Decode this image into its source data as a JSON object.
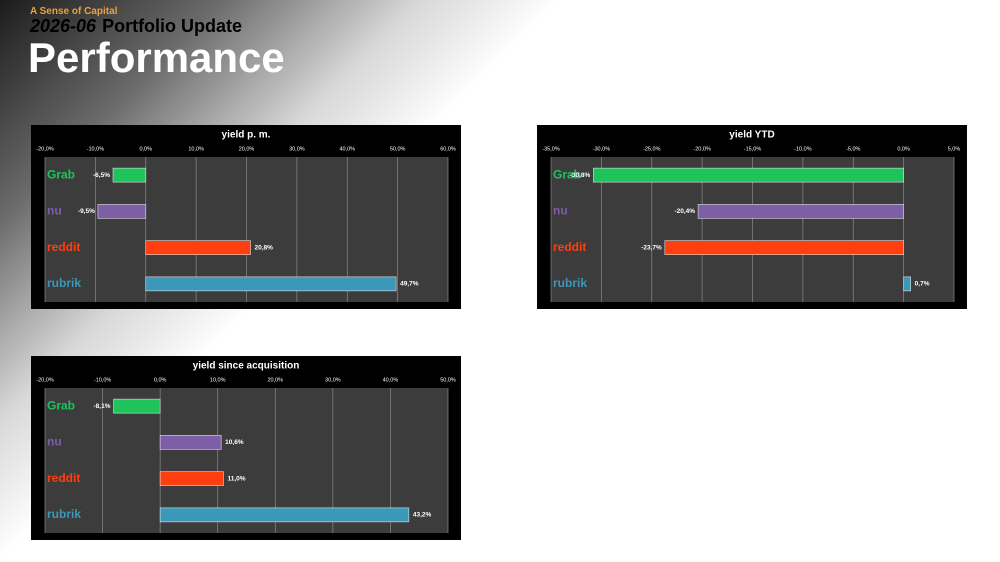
{
  "header": {
    "brand": "A Sense of Capital",
    "date": "2026-06",
    "subtitle": "Portfolio Update",
    "title": "Performance"
  },
  "chart_data": [
    {
      "type": "bar",
      "orientation": "horizontal",
      "title": "yield p. m.",
      "categories": [
        "Grab",
        "nu",
        "reddit",
        "rubrik"
      ],
      "values": [
        -6.5,
        -9.5,
        20.8,
        49.7
      ],
      "value_labels": [
        "-6,5%",
        "-9,5%",
        "20,8%",
        "49,7%"
      ],
      "colors": [
        "#1fc35c",
        "#7d5fa8",
        "#ff3f0f",
        "#3b98b8"
      ],
      "xlim": [
        -20,
        60
      ],
      "xticks": [
        {
          "value": -20,
          "label": "-20,0%"
        },
        {
          "value": -10,
          "label": "-10,0%"
        },
        {
          "value": 0,
          "label": "0,0%"
        },
        {
          "value": 10,
          "label": "10,0%"
        },
        {
          "value": 20,
          "label": "20,0%"
        },
        {
          "value": 30,
          "label": "30,0%"
        },
        {
          "value": 40,
          "label": "40,0%"
        },
        {
          "value": 50,
          "label": "50,0%"
        },
        {
          "value": 60,
          "label": "60,0%"
        }
      ],
      "grid": true
    },
    {
      "type": "bar",
      "orientation": "horizontal",
      "title": "yield YTD",
      "categories": [
        "Grab",
        "nu",
        "reddit",
        "rubrik"
      ],
      "values": [
        -30.8,
        -20.4,
        -23.7,
        0.7
      ],
      "value_labels": [
        "-30,8%",
        "-20,4%",
        "-23,7%",
        "0,7%"
      ],
      "colors": [
        "#1fc35c",
        "#7d5fa8",
        "#ff3f0f",
        "#3b98b8"
      ],
      "xlim": [
        -35,
        5
      ],
      "xticks": [
        {
          "value": -35,
          "label": "-35,0%"
        },
        {
          "value": -30,
          "label": "-30,0%"
        },
        {
          "value": -25,
          "label": "-25,0%"
        },
        {
          "value": -20,
          "label": "-20,0%"
        },
        {
          "value": -15,
          "label": "-15,0%"
        },
        {
          "value": -10,
          "label": "-10,0%"
        },
        {
          "value": -5,
          "label": "-5,0%"
        },
        {
          "value": 0,
          "label": "0,0%"
        },
        {
          "value": 5,
          "label": "5,0%"
        }
      ],
      "grid": true
    },
    {
      "type": "bar",
      "orientation": "horizontal",
      "title": "yield since acquisition",
      "categories": [
        "Grab",
        "nu",
        "reddit",
        "rubrik"
      ],
      "values": [
        -8.1,
        10.6,
        11.0,
        43.2
      ],
      "value_labels": [
        "-8,1%",
        "10,6%",
        "11,0%",
        "43,2%"
      ],
      "colors": [
        "#1fc35c",
        "#7d5fa8",
        "#ff3f0f",
        "#3b98b8"
      ],
      "xlim": [
        -20,
        50
      ],
      "xticks": [
        {
          "value": -20,
          "label": "-20,0%"
        },
        {
          "value": -10,
          "label": "-10,0%"
        },
        {
          "value": 0,
          "label": "0,0%"
        },
        {
          "value": 10,
          "label": "10,0%"
        },
        {
          "value": 20,
          "label": "20,0%"
        },
        {
          "value": 30,
          "label": "30,0%"
        },
        {
          "value": 40,
          "label": "40,0%"
        },
        {
          "value": 50,
          "label": "50,0%"
        }
      ],
      "grid": true
    }
  ]
}
